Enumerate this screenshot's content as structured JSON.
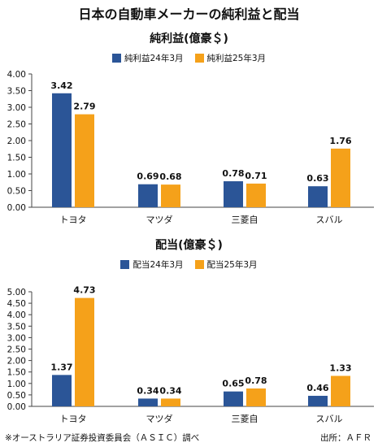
{
  "title": "日本の自動車メーカーの純利益と配当",
  "footnote": "※オーストラリア証券投資委員会（ＡＳＩＣ）調べ",
  "source": "出所：ＡＦＲ",
  "colors": {
    "series1": "#2b5597",
    "series2": "#f5a11a",
    "axis": "#444444"
  },
  "chart_data": [
    {
      "type": "bar",
      "title": "純利益(億豪＄)",
      "categories": [
        "トヨタ",
        "マツダ",
        "三菱自",
        "スバル"
      ],
      "series": [
        {
          "name": "純利益24年3月",
          "values": [
            3.42,
            0.69,
            0.78,
            0.63
          ]
        },
        {
          "name": "純利益25年3月",
          "values": [
            2.79,
            0.68,
            0.71,
            1.76
          ]
        }
      ],
      "value_labels": [
        [
          "3.42",
          "0.69",
          "0.78",
          "0.63"
        ],
        [
          "2.79",
          "0.68",
          "0.71",
          "1.76"
        ]
      ],
      "ylim": [
        0,
        4.0
      ],
      "yticks": [
        "0.00",
        "0.50",
        "1.00",
        "1.50",
        "2.00",
        "2.50",
        "3.00",
        "3.50",
        "4.00"
      ],
      "legend": "top-center",
      "grid": false
    },
    {
      "type": "bar",
      "title": "配当(億豪＄)",
      "categories": [
        "トヨタ",
        "マツダ",
        "三菱自",
        "スバル"
      ],
      "series": [
        {
          "name": "配当24年3月",
          "values": [
            1.37,
            0.34,
            0.65,
            0.46
          ]
        },
        {
          "name": "配当25年3月",
          "values": [
            4.73,
            0.34,
            0.78,
            1.33
          ]
        }
      ],
      "value_labels": [
        [
          "1.37",
          "0.34",
          "0.65",
          "0.46"
        ],
        [
          "4.73",
          "0.34",
          "0.78",
          "1.33"
        ]
      ],
      "ylim": [
        0,
        5.0
      ],
      "yticks": [
        "0.00",
        "0.50",
        "1.00",
        "1.50",
        "2.00",
        "2.50",
        "3.00",
        "3.50",
        "4.00",
        "4.50",
        "5.00"
      ],
      "legend": "top-center",
      "grid": false
    }
  ]
}
